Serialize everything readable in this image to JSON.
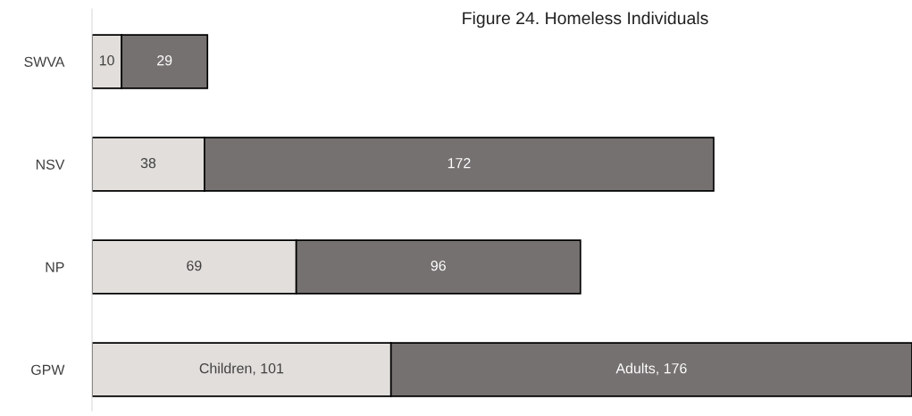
{
  "chart_data": {
    "type": "bar",
    "orientation": "horizontal",
    "stacked": true,
    "title": "Figure 24. Homeless Individuals",
    "categories": [
      "SWVA",
      "NSV",
      "NP",
      "GPW"
    ],
    "series": [
      {
        "color": "#e1dedb",
        "values": [
          10,
          38,
          69,
          101
        ],
        "value_labels": [
          "10",
          "38",
          "69",
          "Children, 101"
        ]
      },
      {
        "color": "#767171",
        "values": [
          29,
          172,
          96,
          176
        ],
        "value_labels": [
          "29",
          "172",
          "96",
          "Adults, 176"
        ]
      }
    ],
    "grid": false,
    "tick_labels": "y"
  }
}
